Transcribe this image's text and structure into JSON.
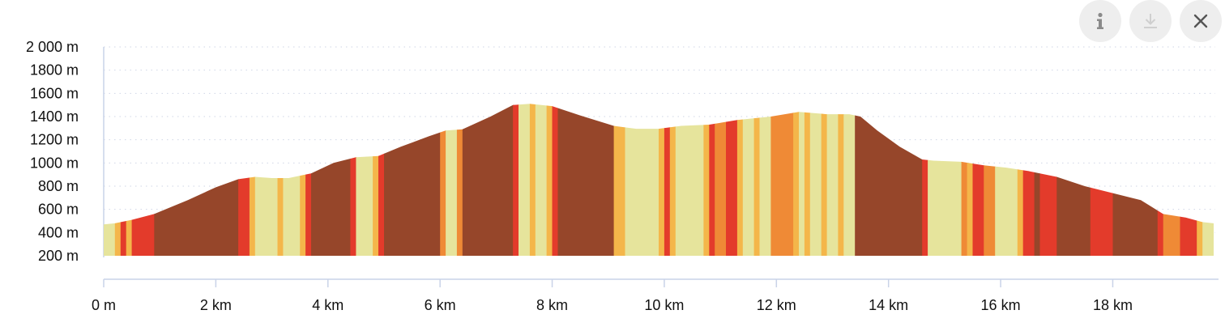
{
  "toolbar": {
    "info_icon": "info-icon",
    "download_icon": "download-icon",
    "close_icon": "close-icon"
  },
  "chart_data": {
    "type": "area",
    "title": "",
    "xlabel": "",
    "ylabel": "",
    "x_unit": "km",
    "y_unit": "m",
    "xlim": [
      0,
      19.8
    ],
    "ylim": [
      200,
      2000
    ],
    "x_ticks": [
      0,
      2,
      4,
      6,
      8,
      10,
      12,
      14,
      16,
      18
    ],
    "x_tick_labels": [
      "0 m",
      "2 km",
      "4 km",
      "6 km",
      "8 km",
      "10 km",
      "12 km",
      "14 km",
      "16 km",
      "18 km"
    ],
    "y_ticks": [
      200,
      400,
      600,
      800,
      1000,
      1200,
      1400,
      1600,
      1800,
      2000
    ],
    "y_tick_labels": [
      "200 m",
      "400 m",
      "600 m",
      "800 m",
      "1000 m",
      "1200 m",
      "1400 m",
      "1600 m",
      "1800 m",
      "2 000 m"
    ],
    "grid": "horizontal dotted",
    "legend": "none",
    "elevation_profile": {
      "x": [
        0,
        0.2,
        0.5,
        0.9,
        1.5,
        2.0,
        2.4,
        2.7,
        3.0,
        3.3,
        3.7,
        4.1,
        4.5,
        4.9,
        5.3,
        5.8,
        6.1,
        6.4,
        6.9,
        7.3,
        7.6,
        8.0,
        8.5,
        9.1,
        9.5,
        9.9,
        10.3,
        10.8,
        11.3,
        11.9,
        12.4,
        12.9,
        13.3,
        13.5,
        13.8,
        14.2,
        14.6,
        14.8,
        15.3,
        15.7,
        16.1,
        16.5,
        17.0,
        17.5,
        18.0,
        18.5,
        18.9,
        19.3,
        19.6,
        19.8
      ],
      "elevation": [
        470,
        480,
        510,
        560,
        680,
        790,
        860,
        880,
        870,
        870,
        910,
        1000,
        1050,
        1060,
        1140,
        1230,
        1280,
        1290,
        1400,
        1500,
        1510,
        1490,
        1410,
        1320,
        1295,
        1295,
        1320,
        1330,
        1370,
        1400,
        1440,
        1420,
        1420,
        1400,
        1280,
        1140,
        1030,
        1020,
        1010,
        980,
        960,
        930,
        880,
        800,
        740,
        680,
        560,
        530,
        490,
        480
      ]
    },
    "gradient_colors": {
      "dark_brown": "#96462a",
      "red": "#e33b2b",
      "orange": "#ef8a36",
      "amber": "#f4b64a",
      "pale_yellow": "#e6e49c"
    },
    "gradient_segments": [
      {
        "from": 0,
        "to": 0.2,
        "color": "pale_yellow"
      },
      {
        "from": 0.2,
        "to": 0.3,
        "color": "amber"
      },
      {
        "from": 0.3,
        "to": 0.4,
        "color": "red"
      },
      {
        "from": 0.4,
        "to": 0.5,
        "color": "amber"
      },
      {
        "from": 0.5,
        "to": 0.9,
        "color": "red"
      },
      {
        "from": 0.9,
        "to": 2.4,
        "color": "dark_brown"
      },
      {
        "from": 2.4,
        "to": 2.6,
        "color": "red"
      },
      {
        "from": 2.6,
        "to": 2.7,
        "color": "amber"
      },
      {
        "from": 2.7,
        "to": 3.1,
        "color": "pale_yellow"
      },
      {
        "from": 3.1,
        "to": 3.2,
        "color": "amber"
      },
      {
        "from": 3.2,
        "to": 3.5,
        "color": "pale_yellow"
      },
      {
        "from": 3.5,
        "to": 3.6,
        "color": "amber"
      },
      {
        "from": 3.6,
        "to": 3.7,
        "color": "red"
      },
      {
        "from": 3.7,
        "to": 4.4,
        "color": "dark_brown"
      },
      {
        "from": 4.4,
        "to": 4.5,
        "color": "red"
      },
      {
        "from": 4.5,
        "to": 4.8,
        "color": "pale_yellow"
      },
      {
        "from": 4.8,
        "to": 4.9,
        "color": "amber"
      },
      {
        "from": 4.9,
        "to": 5.0,
        "color": "red"
      },
      {
        "from": 5.0,
        "to": 6.0,
        "color": "dark_brown"
      },
      {
        "from": 6.0,
        "to": 6.1,
        "color": "orange"
      },
      {
        "from": 6.1,
        "to": 6.3,
        "color": "pale_yellow"
      },
      {
        "from": 6.3,
        "to": 6.4,
        "color": "orange"
      },
      {
        "from": 6.4,
        "to": 7.3,
        "color": "dark_brown"
      },
      {
        "from": 7.3,
        "to": 7.4,
        "color": "red"
      },
      {
        "from": 7.4,
        "to": 7.6,
        "color": "pale_yellow"
      },
      {
        "from": 7.6,
        "to": 7.7,
        "color": "amber"
      },
      {
        "from": 7.7,
        "to": 7.9,
        "color": "pale_yellow"
      },
      {
        "from": 7.9,
        "to": 8.0,
        "color": "amber"
      },
      {
        "from": 8.0,
        "to": 8.1,
        "color": "red"
      },
      {
        "from": 8.1,
        "to": 9.1,
        "color": "dark_brown"
      },
      {
        "from": 9.1,
        "to": 9.3,
        "color": "amber"
      },
      {
        "from": 9.3,
        "to": 9.9,
        "color": "pale_yellow"
      },
      {
        "from": 9.9,
        "to": 10.0,
        "color": "amber"
      },
      {
        "from": 10.0,
        "to": 10.1,
        "color": "red"
      },
      {
        "from": 10.1,
        "to": 10.2,
        "color": "amber"
      },
      {
        "from": 10.2,
        "to": 10.7,
        "color": "pale_yellow"
      },
      {
        "from": 10.7,
        "to": 10.8,
        "color": "amber"
      },
      {
        "from": 10.8,
        "to": 10.9,
        "color": "red"
      },
      {
        "from": 10.9,
        "to": 11.1,
        "color": "orange"
      },
      {
        "from": 11.1,
        "to": 11.3,
        "color": "red"
      },
      {
        "from": 11.3,
        "to": 11.4,
        "color": "amber"
      },
      {
        "from": 11.4,
        "to": 11.6,
        "color": "pale_yellow"
      },
      {
        "from": 11.6,
        "to": 11.7,
        "color": "amber"
      },
      {
        "from": 11.7,
        "to": 11.9,
        "color": "pale_yellow"
      },
      {
        "from": 11.9,
        "to": 12.3,
        "color": "orange"
      },
      {
        "from": 12.3,
        "to": 12.4,
        "color": "amber"
      },
      {
        "from": 12.4,
        "to": 12.5,
        "color": "pale_yellow"
      },
      {
        "from": 12.5,
        "to": 12.6,
        "color": "amber"
      },
      {
        "from": 12.6,
        "to": 12.8,
        "color": "pale_yellow"
      },
      {
        "from": 12.8,
        "to": 12.9,
        "color": "amber"
      },
      {
        "from": 12.9,
        "to": 13.1,
        "color": "pale_yellow"
      },
      {
        "from": 13.1,
        "to": 13.2,
        "color": "amber"
      },
      {
        "from": 13.2,
        "to": 13.4,
        "color": "pale_yellow"
      },
      {
        "from": 13.4,
        "to": 14.6,
        "color": "dark_brown"
      },
      {
        "from": 14.6,
        "to": 14.7,
        "color": "red"
      },
      {
        "from": 14.7,
        "to": 15.3,
        "color": "pale_yellow"
      },
      {
        "from": 15.3,
        "to": 15.4,
        "color": "orange"
      },
      {
        "from": 15.4,
        "to": 15.5,
        "color": "amber"
      },
      {
        "from": 15.5,
        "to": 15.7,
        "color": "red"
      },
      {
        "from": 15.7,
        "to": 15.9,
        "color": "orange"
      },
      {
        "from": 15.9,
        "to": 16.3,
        "color": "pale_yellow"
      },
      {
        "from": 16.3,
        "to": 16.4,
        "color": "amber"
      },
      {
        "from": 16.4,
        "to": 16.6,
        "color": "red"
      },
      {
        "from": 16.6,
        "to": 16.7,
        "color": "dark_brown"
      },
      {
        "from": 16.7,
        "to": 17.0,
        "color": "red"
      },
      {
        "from": 17.0,
        "to": 17.6,
        "color": "dark_brown"
      },
      {
        "from": 17.6,
        "to": 18.0,
        "color": "red"
      },
      {
        "from": 18.0,
        "to": 18.8,
        "color": "dark_brown"
      },
      {
        "from": 18.8,
        "to": 18.9,
        "color": "red"
      },
      {
        "from": 18.9,
        "to": 19.2,
        "color": "orange"
      },
      {
        "from": 19.2,
        "to": 19.5,
        "color": "red"
      },
      {
        "from": 19.5,
        "to": 19.6,
        "color": "amber"
      },
      {
        "from": 19.6,
        "to": 19.8,
        "color": "pale_yellow"
      }
    ]
  }
}
